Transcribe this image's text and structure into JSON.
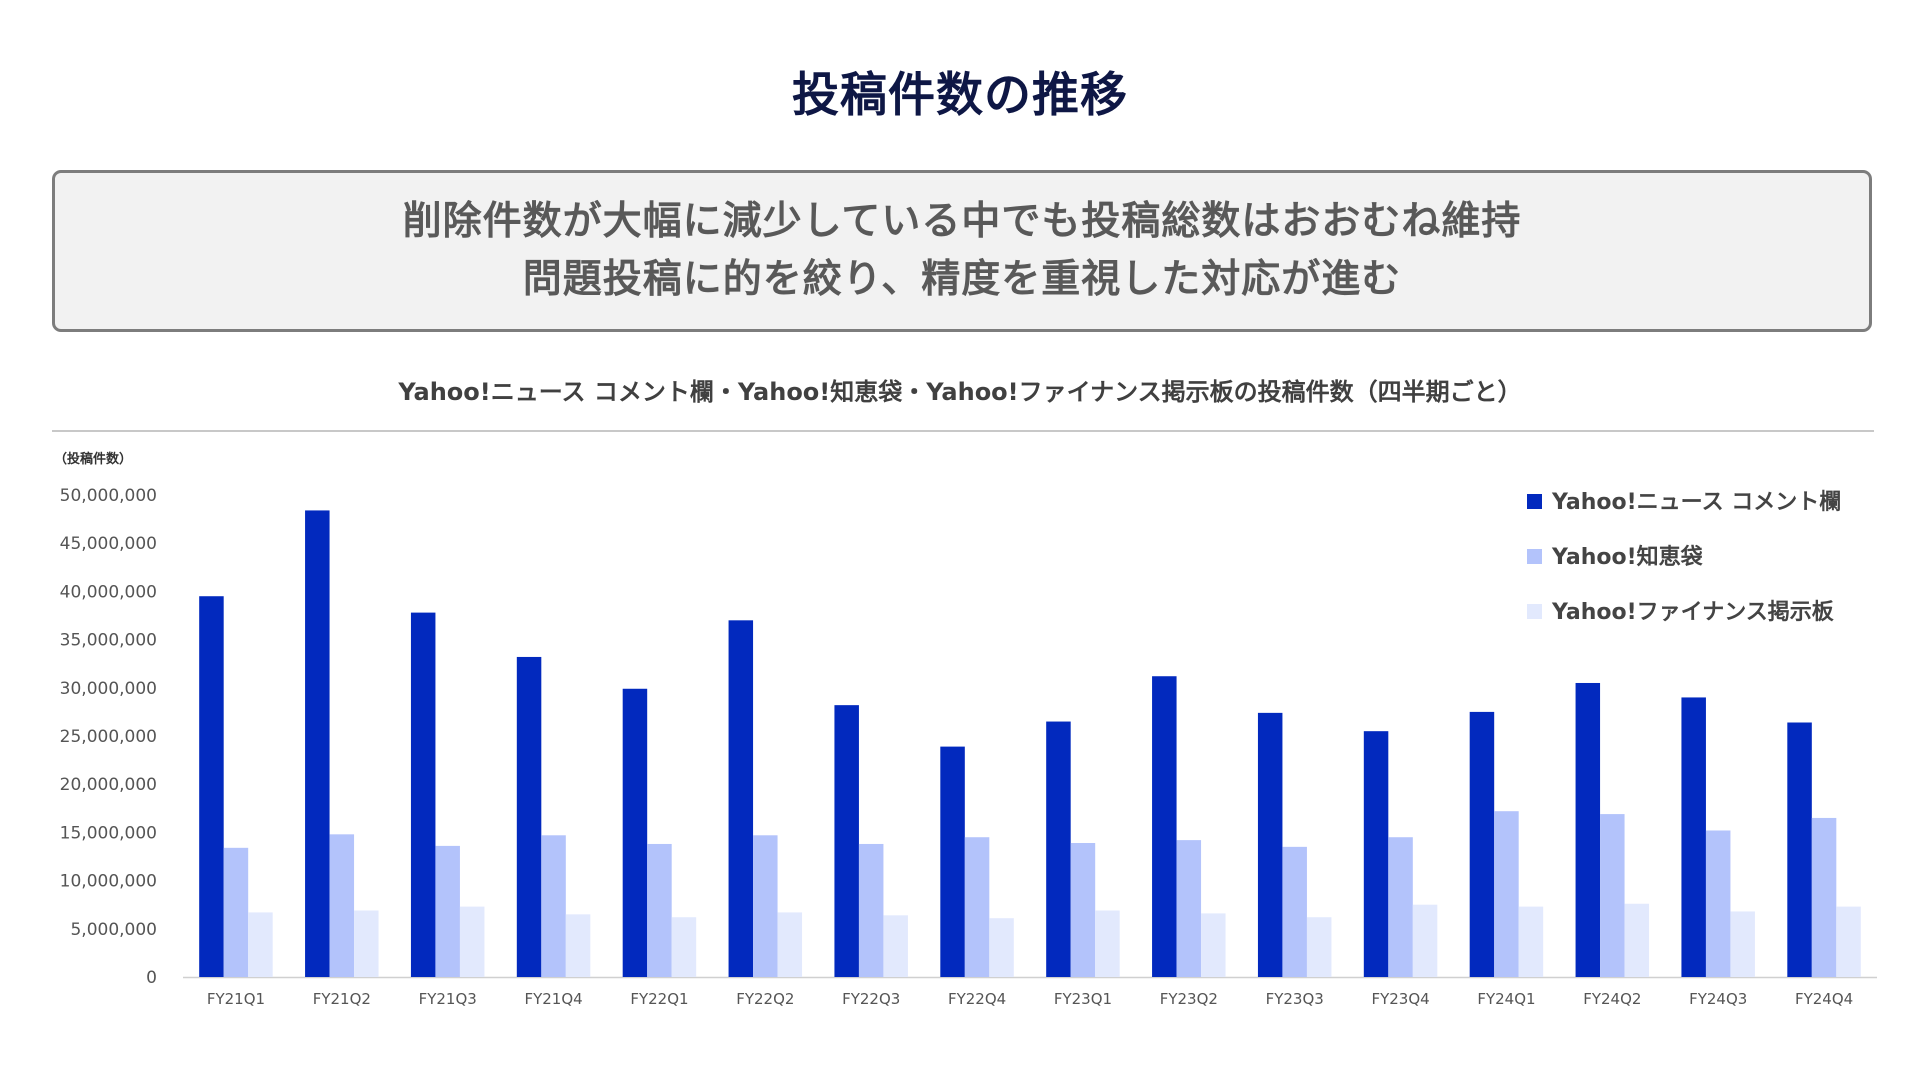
{
  "page": {
    "title": "投稿件数の推移"
  },
  "summary": {
    "line1": "削除件数が大幅に減少している中でも投稿総数はおおむね維持",
    "line2": "問題投稿に的を絞り、精度を重視した対応が進む"
  },
  "chart_data": {
    "type": "bar",
    "title": "Yahoo!ニュース コメント欄・Yahoo!知恵袋・Yahoo!ファイナンス掲示板の投稿件数（四半期ごと）",
    "ylabel": "（投稿件数）",
    "xlabel": "",
    "ylim": [
      0,
      50000000
    ],
    "yticks": [
      0,
      5000000,
      10000000,
      15000000,
      20000000,
      25000000,
      30000000,
      35000000,
      40000000,
      45000000,
      50000000
    ],
    "ytick_labels": [
      "0",
      "5,000,000",
      "10,000,000",
      "15,000,000",
      "20,000,000",
      "25,000,000",
      "30,000,000",
      "35,000,000",
      "40,000,000",
      "45,000,000",
      "50,000,000"
    ],
    "grid": false,
    "legend_position": "top-right",
    "categories": [
      "FY21Q1",
      "FY21Q2",
      "FY21Q3",
      "FY21Q4",
      "FY22Q1",
      "FY22Q2",
      "FY22Q3",
      "FY22Q4",
      "FY23Q1",
      "FY23Q2",
      "FY23Q3",
      "FY23Q4",
      "FY24Q1",
      "FY24Q2",
      "FY24Q3",
      "FY24Q4"
    ],
    "series": [
      {
        "name": "Yahoo!ニュース コメント欄",
        "color": "#0229be",
        "values": [
          39500000,
          48400000,
          37800000,
          33200000,
          29900000,
          37000000,
          28200000,
          23900000,
          26500000,
          31200000,
          27400000,
          25500000,
          27500000,
          30500000,
          29000000,
          26400000
        ]
      },
      {
        "name": "Yahoo!知恵袋",
        "color": "#b3c3fb",
        "values": [
          13400000,
          14800000,
          13600000,
          14700000,
          13800000,
          14700000,
          13800000,
          14500000,
          13900000,
          14200000,
          13500000,
          14500000,
          17200000,
          16900000,
          15200000,
          16500000
        ]
      },
      {
        "name": "Yahoo!ファイナンス掲示板",
        "color": "#e2e9fd",
        "values": [
          6700000,
          6900000,
          7300000,
          6500000,
          6200000,
          6700000,
          6400000,
          6100000,
          6900000,
          6600000,
          6200000,
          7500000,
          7300000,
          7600000,
          6800000,
          7300000
        ]
      }
    ]
  }
}
